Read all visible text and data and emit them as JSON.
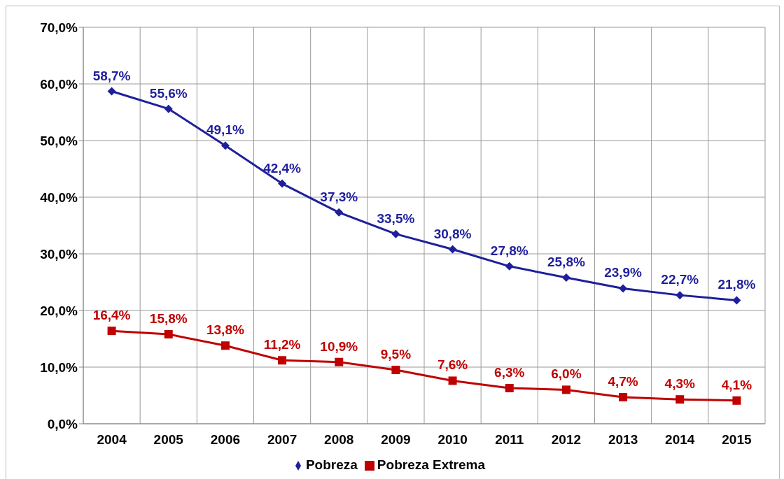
{
  "chart_data": {
    "type": "line",
    "categories": [
      "2004",
      "2005",
      "2006",
      "2007",
      "2008",
      "2009",
      "2010",
      "2011",
      "2012",
      "2013",
      "2014",
      "2015"
    ],
    "series": [
      {
        "name": "Pobreza",
        "color": "#1f1f9c",
        "marker": "diamond",
        "values": [
          58.7,
          55.6,
          49.1,
          42.4,
          37.3,
          33.5,
          30.8,
          27.8,
          25.8,
          23.9,
          22.7,
          21.8
        ],
        "value_labels": [
          "58,7%",
          "55,6%",
          "49,1%",
          "42,4%",
          "37,3%",
          "33,5%",
          "30,8%",
          "27,8%",
          "25,8%",
          "23,9%",
          "22,7%",
          "21,8%"
        ]
      },
      {
        "name": "Pobreza Extrema",
        "color": "#c00000",
        "marker": "square",
        "values": [
          16.4,
          15.8,
          13.8,
          11.2,
          10.9,
          9.5,
          7.6,
          6.3,
          6.0,
          4.7,
          4.3,
          4.1
        ],
        "value_labels": [
          "16,4%",
          "15,8%",
          "13,8%",
          "11,2%",
          "10,9%",
          "9,5%",
          "7,6%",
          "6,3%",
          "6,0%",
          "4,7%",
          "4,3%",
          "4,1%"
        ]
      }
    ],
    "ylim": [
      0,
      70
    ],
    "yticks": [
      {
        "value": 0,
        "label": "0,0%"
      },
      {
        "value": 10,
        "label": "10,0%"
      },
      {
        "value": 20,
        "label": "20,0%"
      },
      {
        "value": 30,
        "label": "30,0%"
      },
      {
        "value": 40,
        "label": "40,0%"
      },
      {
        "value": 50,
        "label": "50,0%"
      },
      {
        "value": 60,
        "label": "60,0%"
      },
      {
        "value": 70,
        "label": "70,0%"
      }
    ],
    "grid": true,
    "legend": "bottom",
    "line_style": "solid"
  }
}
